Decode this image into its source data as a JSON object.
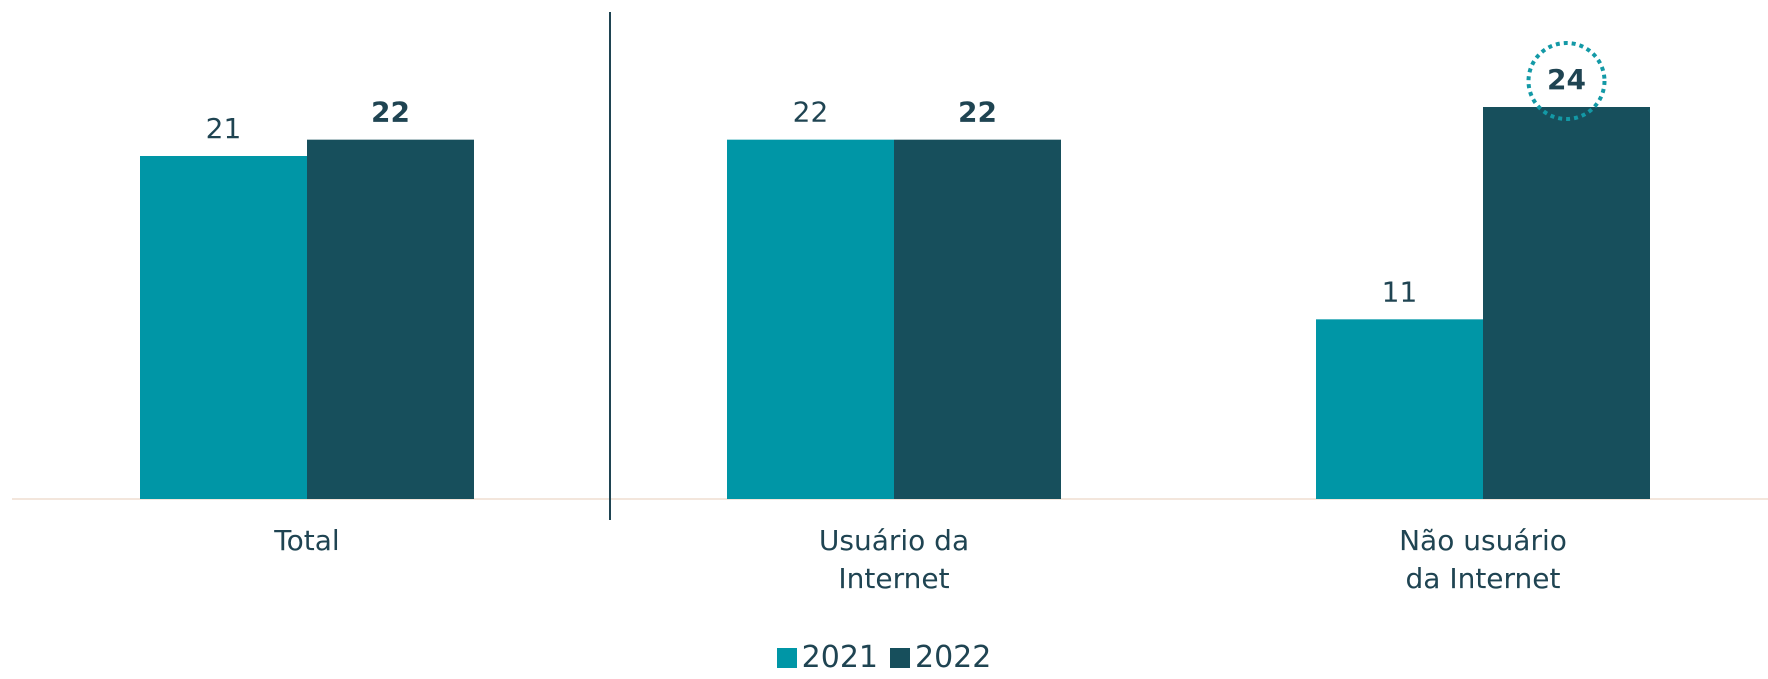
{
  "chart_data": {
    "type": "bar",
    "categories": [
      "Total",
      "Usuário da Internet",
      "Não usuário da Internet"
    ],
    "series": [
      {
        "name": "2021",
        "color": "#0096a6",
        "values": [
          21,
          22,
          11
        ],
        "bold": false
      },
      {
        "name": "2022",
        "color": "#174f5c",
        "values": [
          22,
          22,
          24
        ],
        "bold": true
      }
    ],
    "highlight": {
      "series": 1,
      "index": 2,
      "color": "#1399a6"
    }
  }
}
